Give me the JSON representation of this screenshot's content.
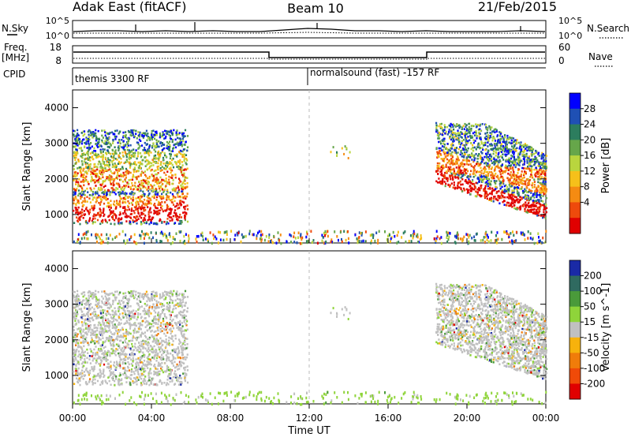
{
  "header": {
    "title": "Adak East (fitACF)",
    "beam": "Beam 10",
    "date": "21/Feb/2015"
  },
  "panels": {
    "nsky_label": "N.Sky",
    "nsearch_label": "N.Search",
    "nsky_ticks": [
      "10^5",
      "10^0"
    ],
    "nsky_right_ticks": [
      "10^5",
      "10^0"
    ],
    "freq_label": "Freq.",
    "freq_unit": "[MHz]",
    "freq_ticks": [
      "18",
      "8"
    ],
    "nave_label": "Nave",
    "nave_ticks": [
      "60",
      "0"
    ],
    "cpid_label": "CPID",
    "cpid_segments": [
      "themis 3300 RF",
      "normalsound (fast) -157 RF"
    ]
  },
  "chart_data": [
    {
      "type": "heatmap",
      "title": "",
      "ylabel": "Slant Range [km]",
      "xlabel": "",
      "ylim": [
        200,
        4500
      ],
      "yticks": [
        1000,
        2000,
        3000,
        4000
      ],
      "colorbar": {
        "label": "Power [dB]",
        "ticks": [
          4,
          8,
          12,
          16,
          20,
          24,
          28
        ],
        "colors": [
          "#0000ff",
          "#1f50b4",
          "#2c7d5e",
          "#66a64a",
          "#b9d53e",
          "#f6c01a",
          "#f58b12",
          "#ee4a0c",
          "#e00000"
        ]
      },
      "scatter_regions": [
        {
          "x_range": [
            0.0,
            5.8
          ],
          "y_range": [
            750,
            3400
          ],
          "note": "bands near 1000-1500, 1800-2300 km"
        },
        {
          "x_range": [
            18.5,
            24.0
          ],
          "y_range": [
            700,
            3600
          ],
          "note": "descending bands"
        }
      ]
    },
    {
      "type": "heatmap",
      "title": "",
      "ylabel": "Slant Range [km]",
      "xlabel": "Time UT",
      "ylim": [
        200,
        4500
      ],
      "yticks": [
        1000,
        2000,
        3000,
        4000
      ],
      "xticks": [
        "00:00",
        "04:00",
        "08:00",
        "12:00",
        "16:00",
        "20:00",
        "00:00"
      ],
      "xlim": [
        0,
        24
      ],
      "colorbar": {
        "label": "Velocity [m s^-1]",
        "ticks": [
          "200",
          "100",
          "50",
          "15",
          "-15",
          "-50",
          "-100",
          "-200"
        ],
        "colors": [
          "#1a2aa6",
          "#2f6a60",
          "#4a9a3a",
          "#8fd43a",
          "#c0c0c0",
          "#f7b20c",
          "#f07c0a",
          "#f04a08",
          "#e00000"
        ]
      }
    }
  ]
}
